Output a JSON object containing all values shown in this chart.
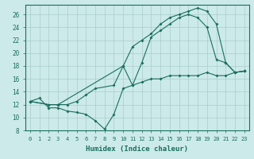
{
  "xlabel": "Humidex (Indice chaleur)",
  "bg_color": "#cceaea",
  "line_color": "#1a6e5e",
  "grid_color": "#aacccc",
  "xlim": [
    -0.5,
    23.5
  ],
  "ylim": [
    8,
    27.5
  ],
  "xticks": [
    0,
    1,
    2,
    3,
    4,
    5,
    6,
    7,
    8,
    9,
    10,
    11,
    12,
    13,
    14,
    15,
    16,
    17,
    18,
    19,
    20,
    21,
    22,
    23
  ],
  "yticks": [
    8,
    10,
    12,
    14,
    16,
    18,
    20,
    22,
    24,
    26
  ],
  "line1_x": [
    0,
    1,
    2,
    3,
    4,
    5,
    6,
    7,
    8,
    9,
    10,
    11,
    12,
    13,
    14,
    15,
    16,
    17,
    18,
    19,
    20,
    21,
    22,
    23
  ],
  "line1_y": [
    12.5,
    13.0,
    11.5,
    11.5,
    11.0,
    10.8,
    10.5,
    9.5,
    8.2,
    10.5,
    14.5,
    15.0,
    15.5,
    16.0,
    16.0,
    16.5,
    16.5,
    16.5,
    16.5,
    17.0,
    16.5,
    16.5,
    17.0,
    17.2
  ],
  "line2_x": [
    0,
    2,
    3,
    10,
    11,
    12,
    13,
    14,
    15,
    16,
    17,
    18,
    19,
    20,
    21,
    22,
    23
  ],
  "line2_y": [
    12.5,
    12.0,
    12.0,
    18.0,
    21.0,
    22.0,
    23.0,
    24.5,
    25.5,
    26.0,
    26.5,
    27.0,
    26.5,
    24.5,
    18.5,
    17.0,
    17.2
  ],
  "line3_x": [
    0,
    2,
    3,
    4,
    5,
    6,
    7,
    9,
    10,
    11,
    12,
    13,
    14,
    15,
    16,
    17,
    18,
    19,
    20,
    21,
    22,
    23
  ],
  "line3_y": [
    12.5,
    12.0,
    12.0,
    12.0,
    12.5,
    13.5,
    14.5,
    15.0,
    18.0,
    15.0,
    18.5,
    22.5,
    23.5,
    24.5,
    25.5,
    26.0,
    25.5,
    24.0,
    19.0,
    18.5,
    17.0,
    17.2
  ]
}
